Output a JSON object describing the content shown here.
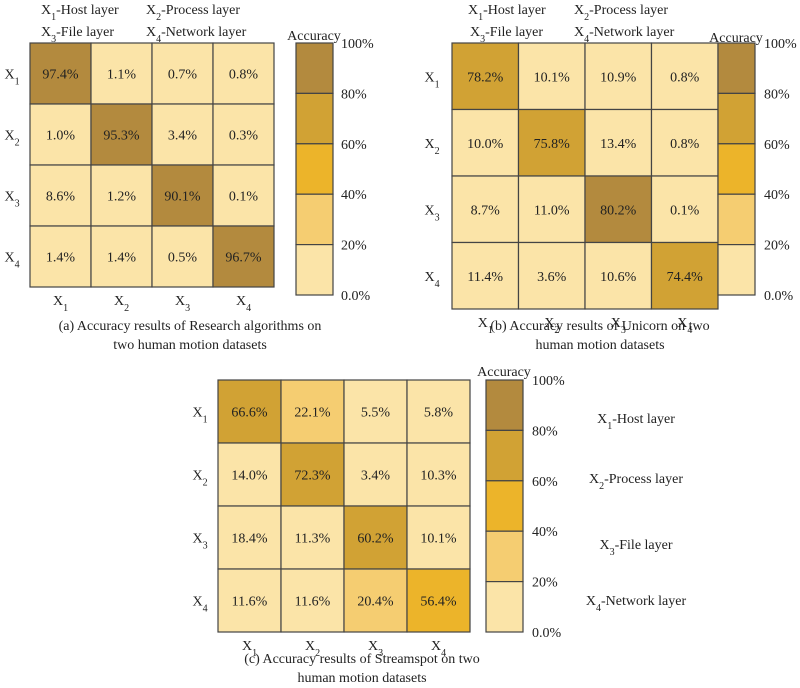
{
  "colors": {
    "bin_0_20": "#FBE4A8",
    "bin_20_40": "#F5CD71",
    "bin_40_60": "#ECB42A",
    "bin_60_80": "#D1A234",
    "bin_80_100": "#B38A3E",
    "grid": "#444444"
  },
  "chart_data": [
    {
      "type": "heatmap",
      "id": "a",
      "title": "(a) Accuracy results of Research algorithms on two human motion datasets",
      "caption_lines": [
        "(a) Accuracy results of Research algorithms on",
        "two human motion datasets"
      ],
      "layer_labels": [
        "X1-Host layer",
        "X2-Process layer",
        "X3-File layer",
        "X4-Network layer"
      ],
      "row_labels": [
        "X1",
        "X2",
        "X3",
        "X4"
      ],
      "col_labels": [
        "X1",
        "X2",
        "X3",
        "X4"
      ],
      "values": [
        [
          97.4,
          1.1,
          0.7,
          0.8
        ],
        [
          1.0,
          95.3,
          3.4,
          0.3
        ],
        [
          8.6,
          1.2,
          90.1,
          0.1
        ],
        [
          1.4,
          1.4,
          0.5,
          96.7
        ]
      ],
      "value_labels": [
        [
          "97.4%",
          "1.1%",
          "0.7%",
          "0.8%"
        ],
        [
          "1.0%",
          "95.3%",
          "3.4%",
          "0.3%"
        ],
        [
          "8.6%",
          "1.2%",
          "90.1%",
          "0.1%"
        ],
        [
          "1.4%",
          "1.4%",
          "0.5%",
          "96.7%"
        ]
      ],
      "colorbar": {
        "title": "Accuracy",
        "ticks": [
          "100%",
          "80%",
          "60%",
          "40%",
          "20%",
          "0.0%"
        ],
        "range": [
          0,
          100
        ]
      }
    },
    {
      "type": "heatmap",
      "id": "b",
      "title": "(b) Accuracy results of Unicorn on two human motion datasets",
      "caption_lines": [
        "(b) Accuracy results of Unicorn on two",
        "human motion datasets"
      ],
      "layer_labels": [
        "X1-Host layer",
        "X2-Process layer",
        "X3-File layer",
        "X4-Network layer"
      ],
      "row_labels": [
        "X1",
        "X2",
        "X3",
        "X4"
      ],
      "col_labels": [
        "X1",
        "X2",
        "X3",
        "X4"
      ],
      "values": [
        [
          78.2,
          10.1,
          10.9,
          0.8
        ],
        [
          10.0,
          75.8,
          13.4,
          0.8
        ],
        [
          8.7,
          11.0,
          80.2,
          0.1
        ],
        [
          11.4,
          3.6,
          10.6,
          74.4
        ]
      ],
      "value_labels": [
        [
          "78.2%",
          "10.1%",
          "10.9%",
          "0.8%"
        ],
        [
          "10.0%",
          "75.8%",
          "13.4%",
          "0.8%"
        ],
        [
          "8.7%",
          "11.0%",
          "80.2%",
          "0.1%"
        ],
        [
          "11.4%",
          "3.6%",
          "10.6%",
          "74.4%"
        ]
      ],
      "colorbar": {
        "title": "Accuracy",
        "ticks": [
          "100%",
          "80%",
          "60%",
          "40%",
          "20%",
          "0.0%"
        ],
        "range": [
          0,
          100
        ]
      }
    },
    {
      "type": "heatmap",
      "id": "c",
      "title": "(c) Accuracy results of Streamspot on two human motion datasets",
      "caption_lines": [
        "(c) Accuracy results of Streamspot on two",
        "human motion datasets"
      ],
      "layer_labels": [
        "X1-Host layer",
        "X2-Process layer",
        "X3-File layer",
        "X4-Network layer"
      ],
      "row_labels": [
        "X1",
        "X2",
        "X3",
        "X4"
      ],
      "col_labels": [
        "X1",
        "X2",
        "X3",
        "X4"
      ],
      "values": [
        [
          66.6,
          22.1,
          5.5,
          5.8
        ],
        [
          14.0,
          72.3,
          3.4,
          10.3
        ],
        [
          18.4,
          11.3,
          60.2,
          10.1
        ],
        [
          11.6,
          11.6,
          20.4,
          56.4
        ]
      ],
      "value_labels": [
        [
          "66.6%",
          "22.1%",
          "5.5%",
          "5.8%"
        ],
        [
          "14.0%",
          "72.3%",
          "3.4%",
          "10.3%"
        ],
        [
          "18.4%",
          "11.3%",
          "60.2%",
          "10.1%"
        ],
        [
          "11.6%",
          "11.6%",
          "20.4%",
          "56.4%"
        ]
      ],
      "colorbar": {
        "title": "Accuracy",
        "ticks": [
          "100%",
          "80%",
          "60%",
          "40%",
          "20%",
          "0.0%"
        ],
        "range": [
          0,
          100
        ]
      }
    }
  ]
}
